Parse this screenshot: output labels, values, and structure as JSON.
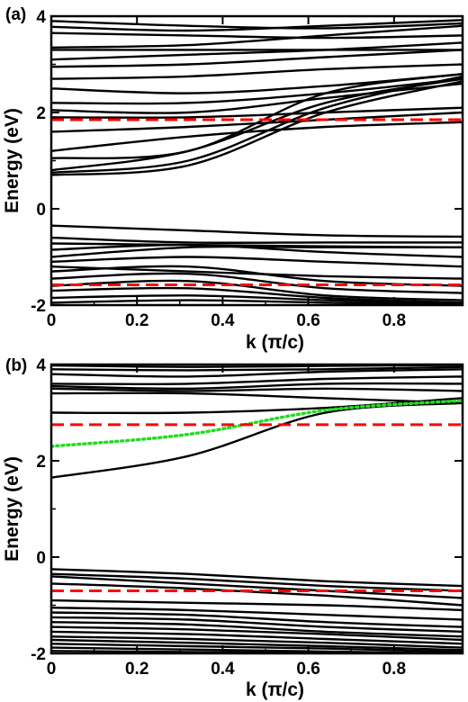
{
  "chart_data": [
    {
      "type": "line",
      "panel_label": "(a)",
      "ylabel": "Energy (eV)",
      "xlabel": "k (π/c)",
      "xlim": [
        0,
        0.96
      ],
      "ylim": [
        -2,
        4
      ],
      "x_ticks": [
        "0",
        "0.2",
        "0.4",
        "0.6",
        "0.8"
      ],
      "y_ticks": [
        "-2",
        "0",
        "2",
        "4"
      ],
      "reference_lines": [
        {
          "y": 1.85,
          "color": "#ff0000",
          "style": "dashed"
        },
        {
          "y": -1.58,
          "color": "#ff0000",
          "style": "dashed"
        }
      ],
      "band_color": "#000000",
      "series": [
        {
          "x": [
            0,
            0.32,
            0.64,
            0.96
          ],
          "y": [
            3.9,
            3.8,
            3.75,
            3.85
          ]
        },
        {
          "x": [
            0,
            0.32,
            0.64,
            0.96
          ],
          "y": [
            3.78,
            3.7,
            3.8,
            3.92
          ]
        },
        {
          "x": [
            0,
            0.32,
            0.64,
            0.96
          ],
          "y": [
            3.65,
            3.6,
            3.55,
            3.6
          ]
        },
        {
          "x": [
            0,
            0.32,
            0.64,
            0.96
          ],
          "y": [
            3.35,
            3.4,
            3.6,
            3.8
          ]
        },
        {
          "x": [
            0,
            0.32,
            0.64,
            0.96
          ],
          "y": [
            3.3,
            3.3,
            3.3,
            3.3
          ]
        },
        {
          "x": [
            0,
            0.32,
            0.64,
            0.96
          ],
          "y": [
            3.1,
            3.2,
            3.3,
            3.45
          ]
        },
        {
          "x": [
            0,
            0.32,
            0.64,
            0.96
          ],
          "y": [
            2.95,
            3.0,
            3.15,
            3.3
          ]
        },
        {
          "x": [
            0,
            0.32,
            0.64,
            0.96
          ],
          "y": [
            2.7,
            2.75,
            2.9,
            3.0
          ]
        },
        {
          "x": [
            0,
            0.32,
            0.64,
            0.96
          ],
          "y": [
            2.5,
            2.4,
            2.55,
            2.8
          ]
        },
        {
          "x": [
            0,
            0.32,
            0.64,
            0.96
          ],
          "y": [
            2.2,
            2.2,
            2.4,
            2.7
          ]
        },
        {
          "x": [
            0,
            0.32,
            0.64,
            0.96
          ],
          "y": [
            2.05,
            2.0,
            2.3,
            2.6
          ]
        },
        {
          "x": [
            0,
            0.32,
            0.64,
            0.96
          ],
          "y": [
            1.9,
            1.9,
            2.0,
            2.1
          ]
        },
        {
          "x": [
            0,
            0.32,
            0.64,
            0.96
          ],
          "y": [
            1.6,
            1.7,
            1.85,
            2.0
          ]
        },
        {
          "x": [
            0,
            0.32,
            0.64,
            0.96
          ],
          "y": [
            1.2,
            1.5,
            1.7,
            1.8
          ]
        },
        {
          "x": [
            0,
            0.32,
            0.64,
            0.96
          ],
          "y": [
            1.05,
            1.2,
            2.4,
            2.8
          ]
        },
        {
          "x": [
            0,
            0.32,
            0.64,
            0.96
          ],
          "y": [
            0.75,
            1.0,
            2.1,
            2.75
          ]
        },
        {
          "x": [
            0,
            0.32,
            0.64,
            0.96
          ],
          "y": [
            0.8,
            1.2,
            2.2,
            2.7
          ]
        },
        {
          "x": [
            0,
            0.32,
            0.64,
            0.96
          ],
          "y": [
            0.7,
            0.9,
            2.0,
            2.65
          ]
        },
        {
          "x": [
            0,
            0.32,
            0.64,
            0.96
          ],
          "y": [
            -0.35,
            -0.45,
            -0.55,
            -0.58
          ]
        },
        {
          "x": [
            0,
            0.32,
            0.64,
            0.96
          ],
          "y": [
            -0.6,
            -0.7,
            -0.7,
            -0.7
          ]
        },
        {
          "x": [
            0,
            0.32,
            0.64,
            0.96
          ],
          "y": [
            -0.72,
            -0.75,
            -0.78,
            -0.8
          ]
        },
        {
          "x": [
            0,
            0.32,
            0.64,
            0.96
          ],
          "y": [
            -0.85,
            -0.75,
            -0.9,
            -1.0
          ]
        },
        {
          "x": [
            0,
            0.32,
            0.64,
            0.96
          ],
          "y": [
            -1.0,
            -0.8,
            -0.8,
            -0.8
          ]
        },
        {
          "x": [
            0,
            0.32,
            0.64,
            0.96
          ],
          "y": [
            -1.1,
            -1.0,
            -1.1,
            -1.2
          ]
        },
        {
          "x": [
            0,
            0.32,
            0.64,
            0.96
          ],
          "y": [
            -1.2,
            -1.3,
            -1.4,
            -1.45
          ]
        },
        {
          "x": [
            0,
            0.32,
            0.64,
            0.96
          ],
          "y": [
            -1.3,
            -1.2,
            -1.5,
            -1.6
          ]
        },
        {
          "x": [
            0,
            0.32,
            0.64,
            0.96
          ],
          "y": [
            -1.45,
            -1.35,
            -1.65,
            -1.75
          ]
        },
        {
          "x": [
            0,
            0.32,
            0.64,
            0.96
          ],
          "y": [
            -1.6,
            -1.5,
            -1.8,
            -1.9
          ]
        },
        {
          "x": [
            0,
            0.32,
            0.64,
            0.96
          ],
          "y": [
            -1.7,
            -1.65,
            -1.85,
            -1.95
          ]
        },
        {
          "x": [
            0,
            0.32,
            0.64,
            0.96
          ],
          "y": [
            -1.85,
            -1.8,
            -1.9,
            -1.98
          ]
        },
        {
          "x": [
            0,
            0.32,
            0.64,
            0.96
          ],
          "y": [
            -1.95,
            -1.9,
            -1.95,
            -2.0
          ]
        }
      ]
    },
    {
      "type": "line",
      "panel_label": "(b)",
      "ylabel": "Energy (eV)",
      "xlabel": "k (π/c)",
      "xlim": [
        0,
        0.96
      ],
      "ylim": [
        -2,
        4
      ],
      "x_ticks": [
        "0",
        "0.2",
        "0.4",
        "0.6",
        "0.8"
      ],
      "y_ticks": [
        "-2",
        "0",
        "2",
        "4"
      ],
      "reference_lines": [
        {
          "y": 2.75,
          "color": "#ff0000",
          "style": "dashed"
        },
        {
          "y": -0.7,
          "color": "#ff0000",
          "style": "dashed"
        }
      ],
      "highlight_band": {
        "x": [
          0,
          0.32,
          0.64,
          0.96
        ],
        "y": [
          2.3,
          2.55,
          3.05,
          3.25
        ],
        "color": "#22dd22",
        "style": "dotted"
      },
      "band_color": "#000000",
      "series": [
        {
          "x": [
            0,
            0.32,
            0.64,
            0.96
          ],
          "y": [
            3.98,
            3.95,
            3.97,
            3.99
          ]
        },
        {
          "x": [
            0,
            0.32,
            0.64,
            0.96
          ],
          "y": [
            3.9,
            3.88,
            3.9,
            3.95
          ]
        },
        {
          "x": [
            0,
            0.32,
            0.64,
            0.96
          ],
          "y": [
            3.8,
            3.75,
            3.85,
            3.9
          ]
        },
        {
          "x": [
            0,
            0.32,
            0.64,
            0.96
          ],
          "y": [
            3.6,
            3.6,
            3.7,
            3.75
          ]
        },
        {
          "x": [
            0,
            0.32,
            0.64,
            0.96
          ],
          "y": [
            3.55,
            3.5,
            3.6,
            3.6
          ]
        },
        {
          "x": [
            0,
            0.32,
            0.64,
            0.96
          ],
          "y": [
            3.5,
            3.45,
            3.5,
            3.45
          ]
        },
        {
          "x": [
            0,
            0.32,
            0.64,
            0.96
          ],
          "y": [
            3.4,
            3.4,
            3.3,
            3.2
          ]
        },
        {
          "x": [
            0,
            0.32,
            0.64,
            0.96
          ],
          "y": [
            3.0,
            3.0,
            3.1,
            3.3
          ]
        },
        {
          "x": [
            0,
            0.32,
            0.64,
            0.96
          ],
          "y": [
            1.65,
            2.1,
            3.0,
            3.2
          ]
        },
        {
          "x": [
            0,
            0.32,
            0.64,
            0.96
          ],
          "y": [
            -0.25,
            -0.35,
            -0.5,
            -0.6
          ]
        },
        {
          "x": [
            0,
            0.32,
            0.64,
            0.96
          ],
          "y": [
            -0.35,
            -0.45,
            -0.6,
            -0.7
          ]
        },
        {
          "x": [
            0,
            0.32,
            0.64,
            0.96
          ],
          "y": [
            -0.4,
            -0.55,
            -0.7,
            -0.85
          ]
        },
        {
          "x": [
            0,
            0.32,
            0.64,
            0.96
          ],
          "y": [
            -0.55,
            -0.65,
            -0.8,
            -1.0
          ]
        },
        {
          "x": [
            0,
            0.32,
            0.64,
            0.96
          ],
          "y": [
            -0.9,
            -0.95,
            -1.0,
            -1.1
          ]
        },
        {
          "x": [
            0,
            0.32,
            0.64,
            0.96
          ],
          "y": [
            -1.05,
            -1.1,
            -1.2,
            -1.3
          ]
        },
        {
          "x": [
            0,
            0.32,
            0.64,
            0.96
          ],
          "y": [
            -1.15,
            -1.2,
            -1.35,
            -1.45
          ]
        },
        {
          "x": [
            0,
            0.32,
            0.64,
            0.96
          ],
          "y": [
            -1.25,
            -1.3,
            -1.45,
            -1.55
          ]
        },
        {
          "x": [
            0,
            0.32,
            0.64,
            0.96
          ],
          "y": [
            -1.35,
            -1.4,
            -1.55,
            -1.65
          ]
        },
        {
          "x": [
            0,
            0.32,
            0.64,
            0.96
          ],
          "y": [
            -1.45,
            -1.5,
            -1.6,
            -1.72
          ]
        },
        {
          "x": [
            0,
            0.32,
            0.64,
            0.96
          ],
          "y": [
            -1.55,
            -1.6,
            -1.7,
            -1.8
          ]
        },
        {
          "x": [
            0,
            0.32,
            0.64,
            0.96
          ],
          "y": [
            -1.65,
            -1.7,
            -1.78,
            -1.88
          ]
        },
        {
          "x": [
            0,
            0.32,
            0.64,
            0.96
          ],
          "y": [
            -1.72,
            -1.78,
            -1.85,
            -1.93
          ]
        },
        {
          "x": [
            0,
            0.32,
            0.64,
            0.96
          ],
          "y": [
            -1.8,
            -1.85,
            -1.9,
            -1.97
          ]
        },
        {
          "x": [
            0,
            0.32,
            0.64,
            0.96
          ],
          "y": [
            -1.88,
            -1.92,
            -1.96,
            -2.0
          ]
        },
        {
          "x": [
            0,
            0.32,
            0.64,
            0.96
          ],
          "y": [
            -1.95,
            -1.97,
            -1.99,
            -2.0
          ]
        }
      ]
    }
  ]
}
